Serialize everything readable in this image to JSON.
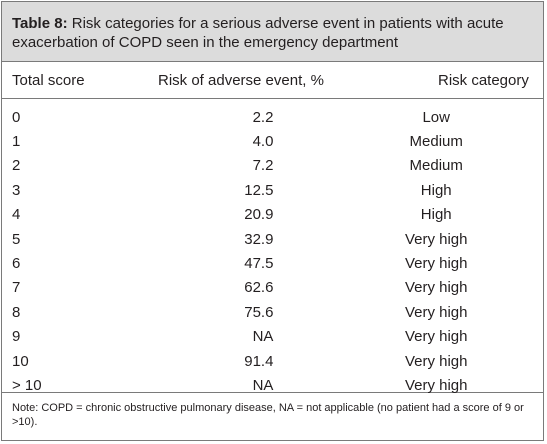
{
  "table": {
    "label": "Table 8:",
    "caption": " Risk categories for a serious adverse event in patients with acute exacerbation of COPD seen in the emergency department",
    "headers": [
      "Total score",
      "Risk of adverse event, %",
      "Risk category"
    ],
    "rows": [
      [
        "0",
        "2.2",
        "Low"
      ],
      [
        "1",
        "4.0",
        "Medium"
      ],
      [
        "2",
        "7.2",
        "Medium"
      ],
      [
        "3",
        "12.5",
        "High"
      ],
      [
        "4",
        "20.9",
        "High"
      ],
      [
        "5",
        "32.9",
        "Very high"
      ],
      [
        "6",
        "47.5",
        "Very high"
      ],
      [
        "7",
        "62.6",
        "Very high"
      ],
      [
        "8",
        "75.6",
        "Very high"
      ],
      [
        "9",
        "NA",
        "Very high"
      ],
      [
        "10",
        "91.4",
        "Very high"
      ],
      [
        "> 10",
        "NA",
        "Very high"
      ]
    ],
    "note": "Note: COPD = chronic obstructive pulmonary disease, NA = not applicable (no patient had a score of 9 or >10)."
  }
}
